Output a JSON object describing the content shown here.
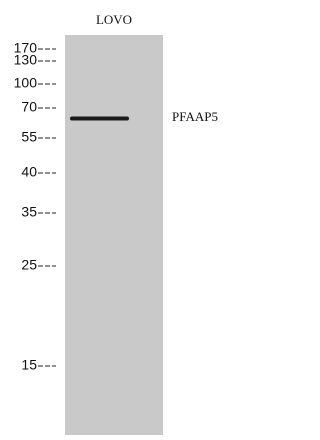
{
  "lane_label": "LOVO",
  "markers": [
    "170",
    "130",
    "100",
    "70",
    "55",
    "40",
    "35",
    "25",
    "15"
  ],
  "band_label": "PFAAP5"
}
